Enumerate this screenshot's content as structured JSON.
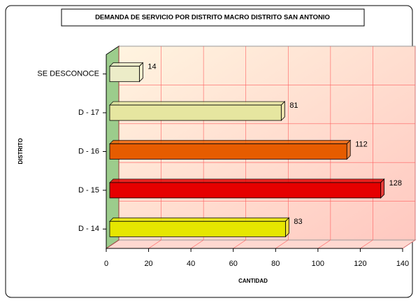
{
  "chart_data": {
    "type": "bar",
    "orientation": "horizontal",
    "title": "DEMANDA DE SERVICIO POR DISTRITO MACRO DISTRITO SAN ANTONIO",
    "x_label": "CANTIDAD",
    "y_label": "DISTRITO",
    "categories": [
      "D - 14",
      "D - 15",
      "D - 16",
      "D - 17",
      "SE DESCONOCE"
    ],
    "values": [
      83,
      128,
      112,
      81,
      14
    ],
    "colors": [
      "#e6e600",
      "#e60000",
      "#e65c00",
      "#e6e6a0",
      "#ececc8"
    ],
    "xlim": [
      0,
      140
    ],
    "xticks": [
      0,
      20,
      40,
      60,
      80,
      100,
      120,
      140
    ],
    "grid": true
  }
}
